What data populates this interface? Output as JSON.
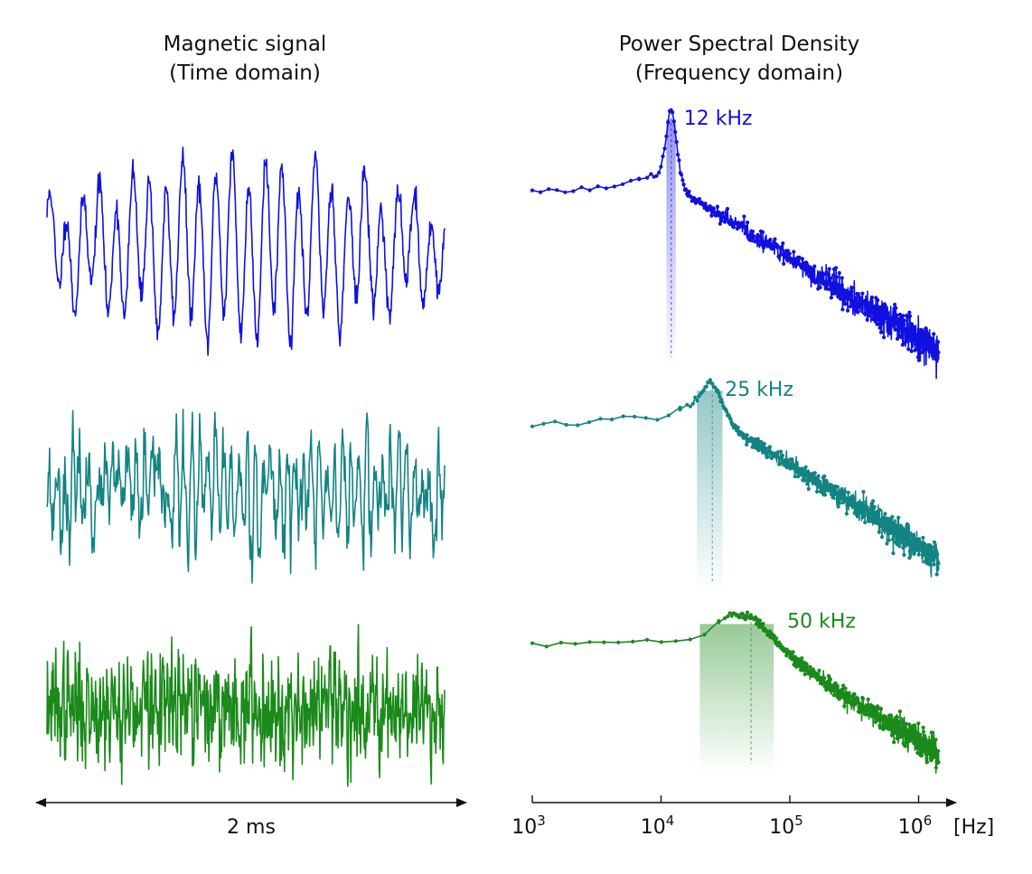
{
  "time_panel": {
    "title_line1": "Magnetic signal",
    "title_line2": "(Time domain)",
    "duration_label": "2 ms"
  },
  "psd_panel": {
    "title_line1": "Power Spectral Density",
    "title_line2": "(Frequency domain)",
    "unit_label": "[Hz]"
  },
  "colors": {
    "blue": "#1010e0",
    "teal": "#138383",
    "green": "#1a8a1a"
  },
  "chart_data": [
    {
      "type": "line",
      "title": "Magnetic signal (Time domain)",
      "xlabel": "2 ms",
      "ylabel": "",
      "x_span_ms": 2,
      "series": [
        {
          "color": "#1010e0",
          "description": "oscillating signal dominated by ~12 kHz component",
          "dominant_frequency_khz": 12
        },
        {
          "color": "#138383",
          "description": "noisier signal dominated by ~25 kHz component",
          "dominant_frequency_khz": 25
        },
        {
          "color": "#1a8a1a",
          "description": "broadband noisy signal dominated by ~50 kHz component",
          "dominant_frequency_khz": 50
        }
      ]
    },
    {
      "type": "scatter",
      "title": "Power Spectral Density (Frequency domain)",
      "xlabel": "[Hz]",
      "ylabel": "",
      "x_scale": "log",
      "xlim": [
        1000,
        1500000
      ],
      "xticks": [
        {
          "value": 1000,
          "base": "10",
          "exp": "3"
        },
        {
          "value": 10000,
          "base": "10",
          "exp": "4"
        },
        {
          "value": 100000,
          "base": "10",
          "exp": "5"
        },
        {
          "value": 1000000,
          "base": "10",
          "exp": "6"
        }
      ],
      "series": [
        {
          "color": "#1010e0",
          "peak_hz": 12000,
          "peak_label": "12 kHz",
          "band_hz": [
            11000,
            13000
          ]
        },
        {
          "color": "#138383",
          "peak_hz": 25000,
          "peak_label": "25 kHz",
          "band_hz": [
            19000,
            30000
          ]
        },
        {
          "color": "#1a8a1a",
          "peak_hz": 50000,
          "peak_label": "50 kHz",
          "band_hz": [
            20000,
            75000
          ]
        }
      ]
    }
  ]
}
